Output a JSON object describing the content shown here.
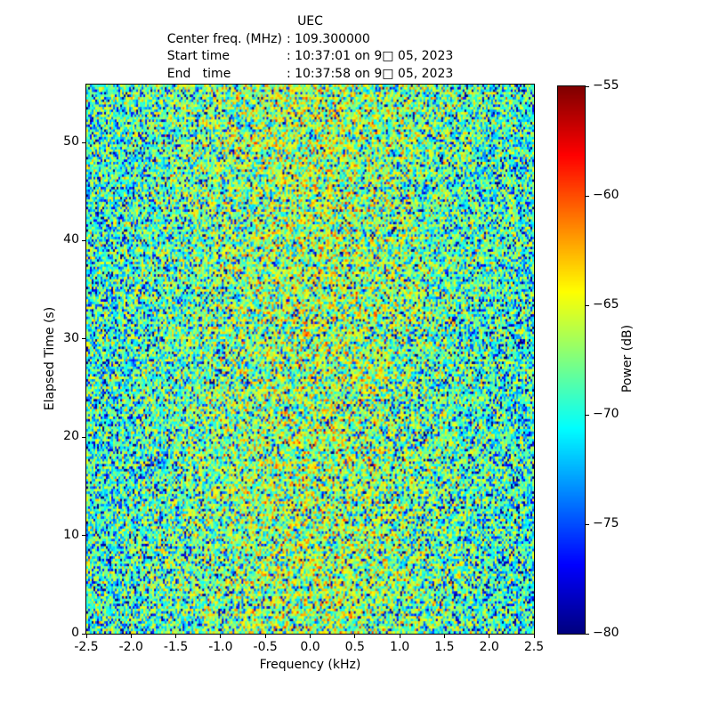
{
  "header": {
    "title": "UEC",
    "lines": [
      {
        "label": "Center freq. (MHz)",
        "value": ": 109.300000"
      },
      {
        "label": "Start time",
        "value": ": 10:37:01 on 9□ 05, 2023"
      },
      {
        "label": "End   time",
        "value": ": 10:37:58 on 9□ 05, 2023"
      }
    ]
  },
  "chart_data": {
    "type": "heatmap",
    "subtype": "spectrogram-waterfall",
    "title": "UEC",
    "center_freq_mhz": 109.3,
    "start_time": "10:37:01 on 9□ 05, 2023",
    "end_time": "10:37:58 on 9□ 05, 2023",
    "xlabel": "Frequency (kHz)",
    "ylabel": "Elapsed Time (s)",
    "xlim": [
      -2.5,
      2.5
    ],
    "ylim": [
      0,
      55.9
    ],
    "x_ticks": [
      {
        "v": -2.5,
        "label": "-2.5"
      },
      {
        "v": -2.0,
        "label": "-2.0"
      },
      {
        "v": -1.5,
        "label": "-1.5"
      },
      {
        "v": -1.0,
        "label": "-1.0"
      },
      {
        "v": -0.5,
        "label": "-0.5"
      },
      {
        "v": 0.0,
        "label": "0.0"
      },
      {
        "v": 0.5,
        "label": "0.5"
      },
      {
        "v": 1.0,
        "label": "1.0"
      },
      {
        "v": 1.5,
        "label": "1.5"
      },
      {
        "v": 2.0,
        "label": "2.0"
      },
      {
        "v": 2.5,
        "label": "2.5"
      }
    ],
    "y_ticks": [
      {
        "v": 0,
        "label": "0"
      },
      {
        "v": 10,
        "label": "10"
      },
      {
        "v": 20,
        "label": "20"
      },
      {
        "v": 30,
        "label": "30"
      },
      {
        "v": 40,
        "label": "40"
      },
      {
        "v": 50,
        "label": "50"
      }
    ],
    "colorbar": {
      "label": "Power (dB)",
      "colormap": "jet",
      "vmin": -80,
      "vmax": -55,
      "ticks": [
        {
          "v": -55,
          "label": "−55"
        },
        {
          "v": -60,
          "label": "−60"
        },
        {
          "v": -65,
          "label": "−65"
        },
        {
          "v": -70,
          "label": "−70"
        },
        {
          "v": -75,
          "label": "−75"
        },
        {
          "v": -80,
          "label": "−80"
        }
      ]
    },
    "grid": false,
    "data_description": "Random RF noise floor around -70 dB; slightly hotter (≈ -67 dB mean) near the 0.0 kHz center frequency, cooler (≈ -71 dB) toward the band edges; speckle spans ≈ -80 to -58 dB.",
    "noise_model": {
      "rows": 220,
      "cols": 251,
      "seed": 1337,
      "base_db": -70.8,
      "center_bump_db": 3.2,
      "bump_width_frac": 0.32,
      "offset_db": 2.2,
      "noise_scale": 0.85
    }
  }
}
